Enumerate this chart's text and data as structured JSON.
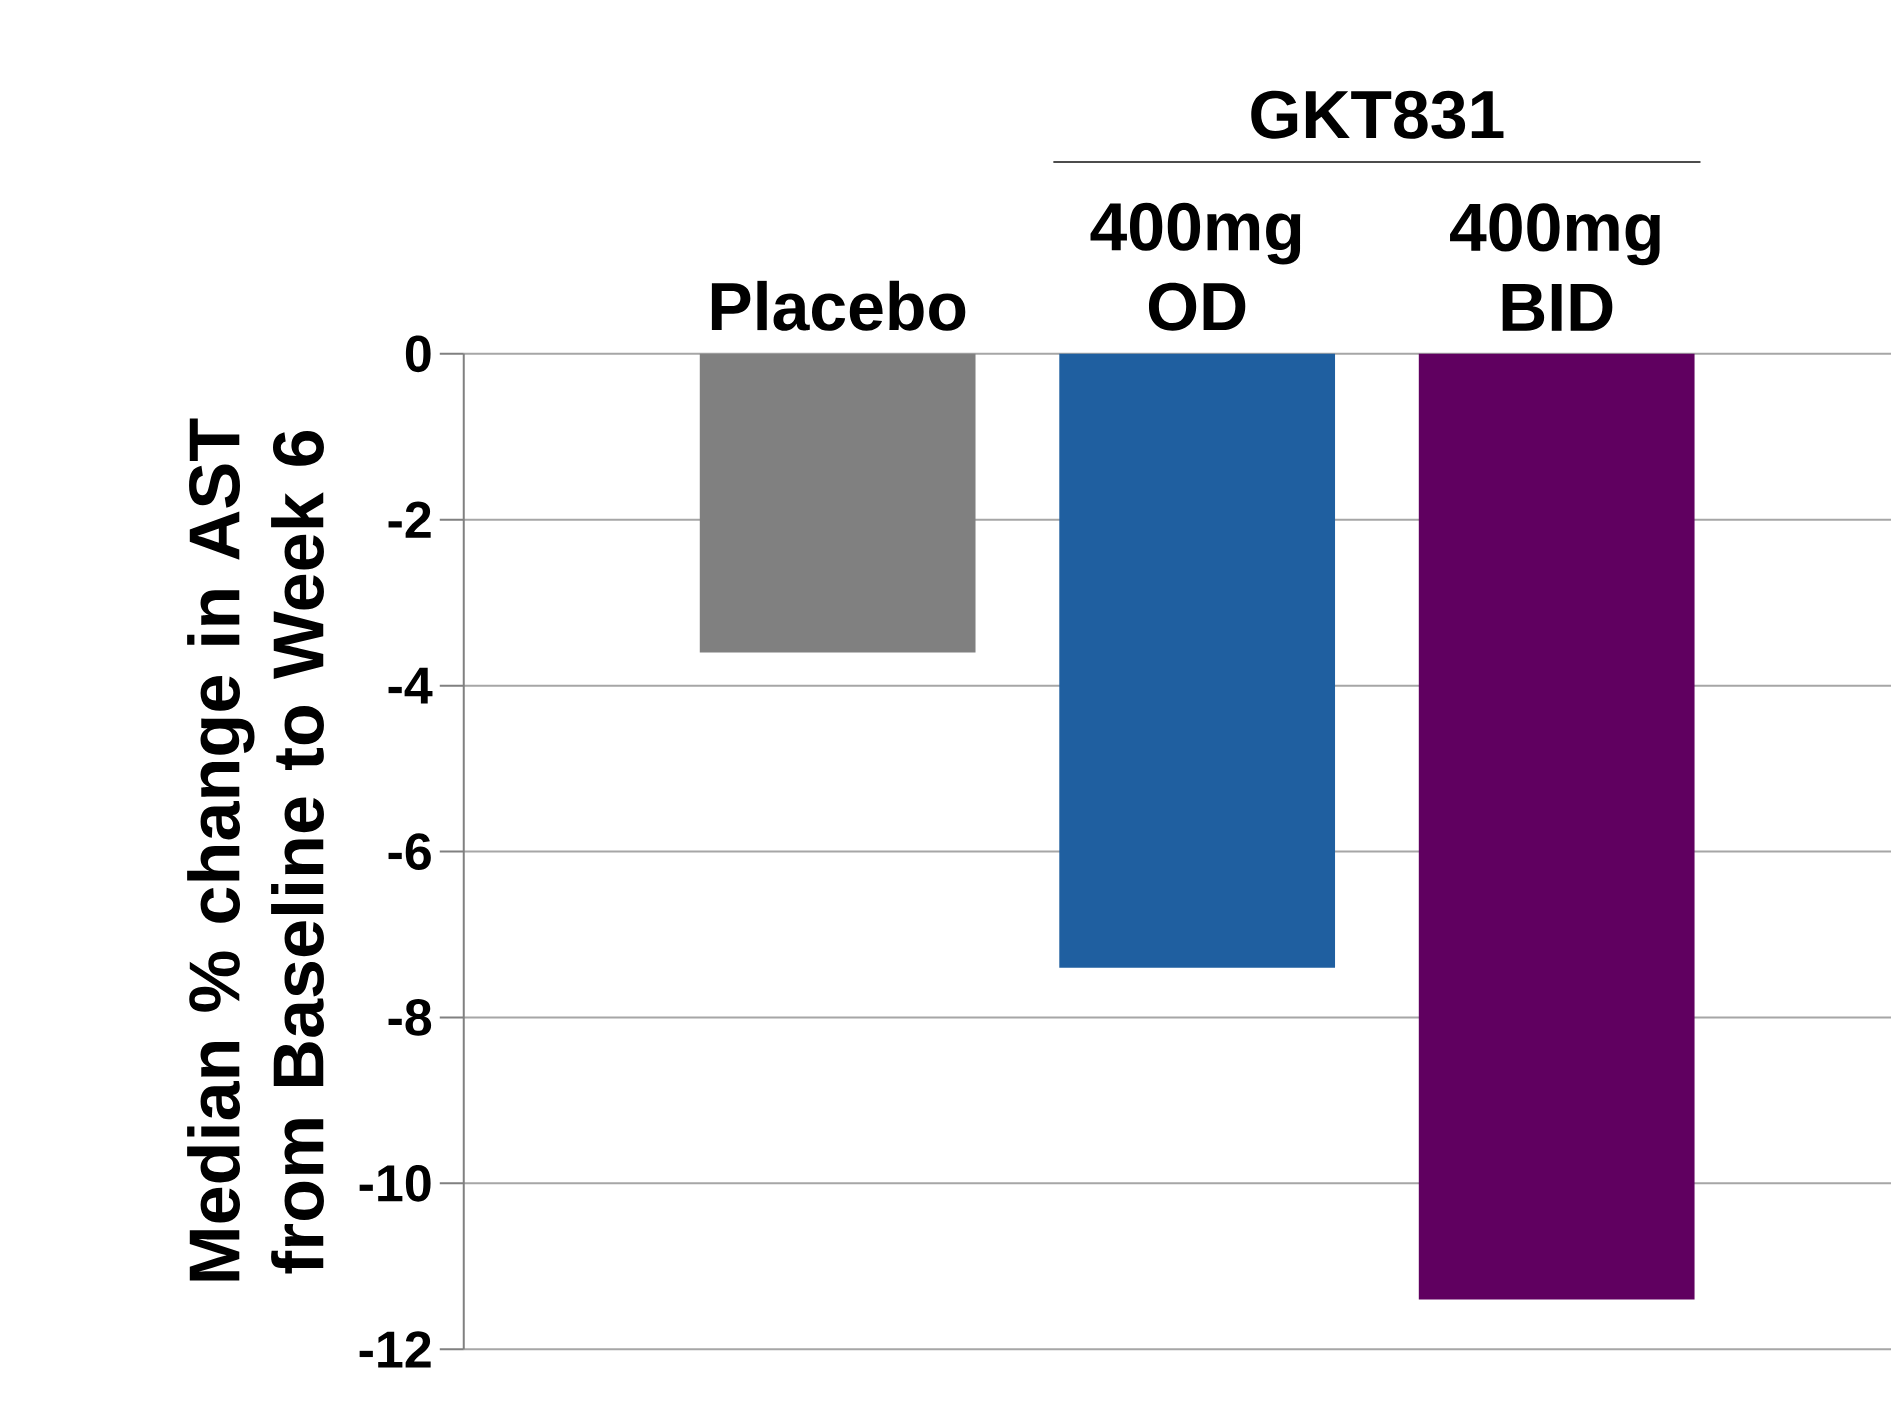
{
  "chart_data": {
    "type": "bar",
    "categories": [
      "Placebo",
      "400mg OD",
      "400mg BID"
    ],
    "values": [
      -3.6,
      -7.4,
      -11.4
    ],
    "colors": [
      "#808080",
      "#1f5fa0",
      "#600060"
    ],
    "ylabel": "Median % change in AST from Baseline to Week 6",
    "ylim": [
      -12,
      0
    ],
    "yticks": [
      0,
      -2,
      -4,
      -6,
      -8,
      -10,
      -12
    ],
    "grid": "y",
    "annotations": [
      "GKT831"
    ]
  }
}
